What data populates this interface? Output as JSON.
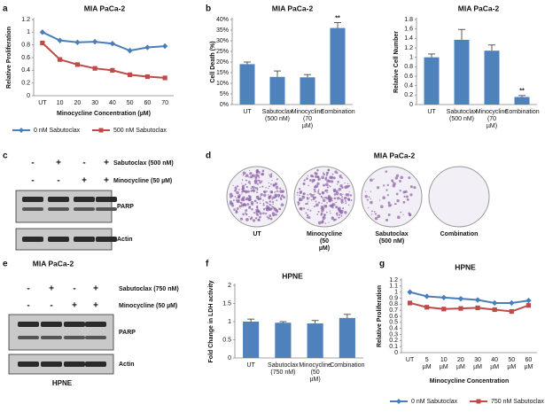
{
  "panel_labels": [
    "a",
    "b",
    "c",
    "d",
    "e",
    "f",
    "g"
  ],
  "chart_data": [
    {
      "type": "line",
      "title": "MIA PaCa-2",
      "x_label": "Minocycline Concentration (µM)",
      "y_label": "Relative Proliferation",
      "categories": [
        "UT",
        "10",
        "20",
        "30",
        "40",
        "50",
        "60",
        "70"
      ],
      "series": [
        {
          "name": "0 nM Sabutoclax",
          "color": "#4a7ebb",
          "marker": "diamond",
          "values": [
            1.0,
            0.87,
            0.84,
            0.85,
            0.82,
            0.71,
            0.76,
            0.78
          ]
        },
        {
          "name": "500 nM Sabutoclax",
          "color": "#be4b48",
          "marker": "square",
          "values": [
            0.83,
            0.57,
            0.49,
            0.43,
            0.4,
            0.33,
            0.3,
            0.28
          ]
        }
      ],
      "ylim": [
        0,
        1.2
      ],
      "yticks": [
        0,
        0.2,
        0.4,
        0.6,
        0.8,
        1,
        1.2
      ],
      "grid": false,
      "legend": "bottom"
    },
    {
      "type": "bar",
      "title": "MIA PaCa-2",
      "y_label": "Cell Death (%)",
      "categories": [
        "UT",
        "Sabutoclax (500 nM)",
        "Minocycline (70 µM)",
        "Combination"
      ],
      "values": [
        19,
        13,
        12.8,
        36
      ],
      "errors": [
        1,
        2.8,
        1.3,
        2.5
      ],
      "significance": [
        null,
        null,
        null,
        "**"
      ],
      "color": "#4f81bd",
      "ylim": [
        0,
        40
      ],
      "yticks": [
        {
          "value": 0,
          "label": "0%"
        },
        {
          "value": 5,
          "label": "5%"
        },
        {
          "value": 10,
          "label": "10%"
        },
        {
          "value": 15,
          "label": "15%"
        },
        {
          "value": 20,
          "label": "20%"
        },
        {
          "value": 25,
          "label": "25%"
        },
        {
          "value": 30,
          "label": "30%"
        },
        {
          "value": 35,
          "label": "35%"
        },
        {
          "value": 40,
          "label": "40%"
        }
      ],
      "grid": false
    },
    {
      "type": "bar",
      "title": "MIA PaCa-2",
      "y_label": "Relative Cell Number",
      "categories": [
        "UT",
        "Sabutoclax (500 nM)",
        "Minocycline (70 µM)",
        "Combination"
      ],
      "values": [
        1.0,
        1.37,
        1.14,
        0.16
      ],
      "errors": [
        0.07,
        0.22,
        0.12,
        0.03
      ],
      "significance": [
        null,
        null,
        null,
        "**"
      ],
      "color": "#4f81bd",
      "ylim": [
        0,
        1.8
      ],
      "yticks": [
        0,
        0.2,
        0.4,
        0.6,
        0.8,
        1,
        1.2,
        1.4,
        1.6,
        1.8
      ],
      "grid": false
    },
    {
      "type": "bar",
      "title": "HPNE",
      "y_label": "Fold Change in LDH activity",
      "categories": [
        "UT",
        "Sabutoclax (750 nM)",
        "Minocycline (50 µM)",
        "Combination"
      ],
      "values": [
        1.0,
        0.97,
        0.95,
        1.1
      ],
      "errors": [
        0.07,
        0.03,
        0.08,
        0.1
      ],
      "color": "#4f81bd",
      "ylim": [
        0,
        2
      ],
      "yticks": [
        0,
        0.5,
        1,
        1.5,
        2
      ],
      "grid": false
    },
    {
      "type": "line",
      "title": "HPNE",
      "x_label": "Minocycline Concentration",
      "y_label": "Relative Proliferation",
      "categories": [
        "UT",
        "5 µM",
        "10 µM",
        "20 µM",
        "30 µM",
        "40 µM",
        "50 µM",
        "60 µM"
      ],
      "series": [
        {
          "name": "0 nM Sabutoclax",
          "color": "#4a7ebb",
          "marker": "diamond",
          "values": [
            1.0,
            0.93,
            0.91,
            0.89,
            0.87,
            0.82,
            0.82,
            0.86
          ]
        },
        {
          "name": "750 nM Sabutoclax",
          "color": "#be4b48",
          "marker": "square",
          "values": [
            0.82,
            0.75,
            0.72,
            0.73,
            0.74,
            0.71,
            0.68,
            0.78
          ]
        }
      ],
      "ylim": [
        0,
        1.2
      ],
      "yticks": [
        0,
        0.1,
        0.2,
        0.3,
        0.4,
        0.5,
        0.6,
        0.7,
        0.8,
        0.9,
        1,
        1.1,
        1.2
      ],
      "grid": false,
      "legend": "bottom"
    }
  ],
  "blots": [
    {
      "treatments": [
        {
          "name": "Sabutoclax (500 nM)",
          "signs": [
            "-",
            "+",
            "-",
            "+"
          ]
        },
        {
          "name": "Minocycline (50 µM)",
          "signs": [
            "-",
            "-",
            "+",
            "+"
          ]
        }
      ],
      "bands": [
        "PARP",
        "Actin"
      ]
    },
    {
      "title": "MIA PaCa-2",
      "treatments": [
        {
          "name": "Sabutoclax (750 nM)",
          "signs": [
            "-",
            "+",
            "-",
            "+"
          ]
        },
        {
          "name": "Minocycline (50 µM)",
          "signs": [
            "-",
            "-",
            "+",
            "+"
          ]
        }
      ],
      "bands": [
        "PARP",
        "Actin"
      ],
      "footer": "HPNE"
    }
  ],
  "colonies": {
    "title": "MIA PaCa-2",
    "labels": [
      "UT",
      "Minocycline (50 µM)",
      "Sabutoclax (500 nM)",
      "Combination"
    ]
  }
}
